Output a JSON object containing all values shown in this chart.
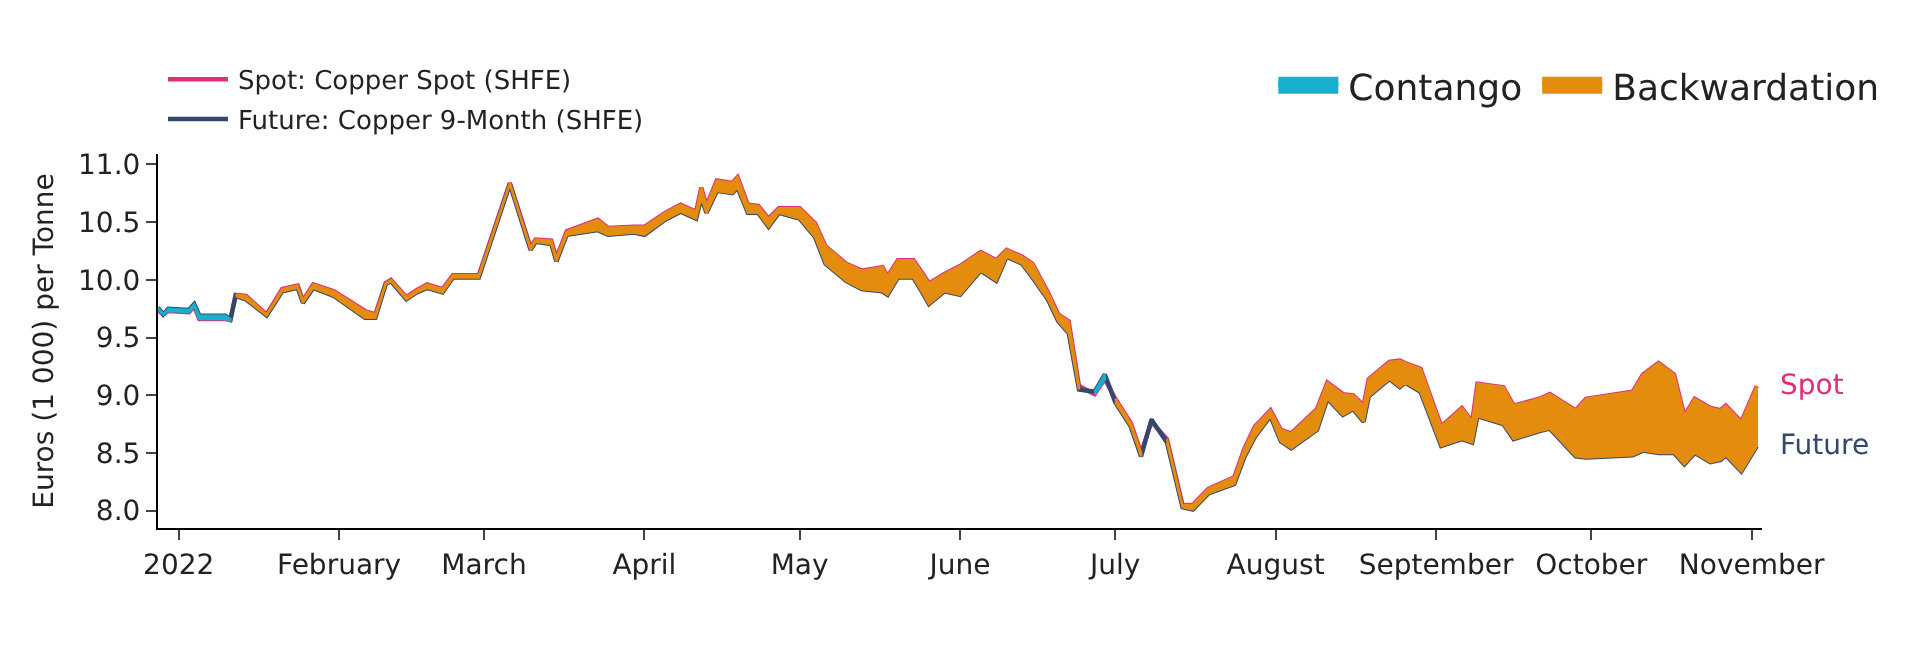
{
  "chart_data": {
    "type": "line",
    "ylabel": "Euros (1 000) per Tonne",
    "x": [
      "2021-12-28",
      "2021-12-29",
      "2021-12-30",
      "2022-01-03",
      "2022-01-04",
      "2022-01-05",
      "2022-01-10",
      "2022-01-11",
      "2022-01-12",
      "2022-01-14",
      "2022-01-18",
      "2022-01-21",
      "2022-01-24",
      "2022-01-25",
      "2022-01-27",
      "2022-01-31",
      "2022-02-06",
      "2022-02-08",
      "2022-02-10",
      "2022-02-11",
      "2022-02-14",
      "2022-02-16",
      "2022-02-18",
      "2022-02-21",
      "2022-02-23",
      "2022-02-28",
      "2022-03-06",
      "2022-03-10",
      "2022-03-11",
      "2022-03-14",
      "2022-03-15",
      "2022-03-17",
      "2022-03-23",
      "2022-03-25",
      "2022-03-30",
      "2022-04-01",
      "2022-04-05",
      "2022-04-08",
      "2022-04-11",
      "2022-04-12",
      "2022-04-13",
      "2022-04-15",
      "2022-04-18",
      "2022-04-19",
      "2022-04-21",
      "2022-04-23",
      "2022-04-25",
      "2022-04-27",
      "2022-05-01",
      "2022-05-04",
      "2022-05-06",
      "2022-05-10",
      "2022-05-13",
      "2022-05-17",
      "2022-05-18",
      "2022-05-20",
      "2022-05-23",
      "2022-05-25",
      "2022-05-26",
      "2022-05-29",
      "2022-06-01",
      "2022-06-05",
      "2022-06-08",
      "2022-06-10",
      "2022-06-13",
      "2022-06-15",
      "2022-06-18",
      "2022-06-20",
      "2022-06-22",
      "2022-06-24",
      "2022-06-27",
      "2022-06-29",
      "2022-07-01",
      "2022-07-04",
      "2022-07-06",
      "2022-07-08",
      "2022-07-11",
      "2022-07-14",
      "2022-07-16",
      "2022-07-19",
      "2022-07-24",
      "2022-07-26",
      "2022-07-28",
      "2022-07-31",
      "2022-08-02",
      "2022-08-04",
      "2022-08-09",
      "2022-08-11",
      "2022-08-14",
      "2022-08-16",
      "2022-08-18",
      "2022-08-19",
      "2022-08-23",
      "2022-08-25",
      "2022-08-26",
      "2022-08-29",
      "2022-09-02",
      "2022-09-06",
      "2022-09-08",
      "2022-09-09",
      "2022-09-14",
      "2022-09-16",
      "2022-09-21",
      "2022-09-23",
      "2022-09-28",
      "2022-09-30",
      "2022-10-09",
      "2022-10-11",
      "2022-10-14",
      "2022-10-17",
      "2022-10-19",
      "2022-10-21",
      "2022-10-24",
      "2022-10-26",
      "2022-10-27",
      "2022-10-30",
      "2022-11-02"
    ],
    "series": [
      {
        "name": "Spot: Copper Spot (SHFE)",
        "color": "#dd2e7a",
        "values": [
          9.74,
          9.7,
          9.73,
          9.72,
          9.77,
          9.66,
          9.66,
          9.65,
          9.87,
          9.86,
          9.7,
          9.92,
          9.95,
          9.82,
          9.96,
          9.9,
          9.73,
          9.7,
          9.97,
          10.0,
          9.85,
          9.91,
          9.96,
          9.92,
          10.04,
          10.04,
          10.84,
          10.28,
          10.35,
          10.34,
          10.19,
          10.42,
          10.52,
          10.45,
          10.46,
          10.46,
          10.58,
          10.65,
          10.59,
          10.8,
          10.64,
          10.86,
          10.84,
          10.89,
          10.65,
          10.64,
          10.53,
          10.62,
          10.62,
          10.49,
          10.29,
          10.14,
          10.08,
          10.11,
          10.03,
          10.17,
          10.17,
          10.04,
          9.97,
          10.05,
          10.12,
          10.24,
          10.17,
          10.26,
          10.2,
          10.14,
          9.89,
          9.7,
          9.64,
          9.08,
          9.01,
          9.14,
          8.97,
          8.76,
          8.5,
          8.77,
          8.62,
          8.05,
          8.05,
          8.19,
          8.29,
          8.54,
          8.73,
          8.87,
          8.7,
          8.67,
          8.88,
          9.11,
          9.01,
          9.0,
          8.91,
          9.14,
          9.29,
          9.3,
          9.28,
          9.23,
          8.73,
          8.89,
          8.77,
          9.1,
          9.07,
          8.91,
          8.97,
          9.01,
          8.87,
          8.97,
          9.03,
          9.18,
          9.28,
          9.18,
          8.82,
          8.97,
          8.89,
          8.87,
          8.91,
          8.77,
          9.08
        ]
      },
      {
        "name": "Future: Copper 9-Month (SHFE)",
        "color": "#34486b",
        "values": [
          9.76,
          9.7,
          9.75,
          9.74,
          9.79,
          9.69,
          9.69,
          9.66,
          9.86,
          9.83,
          9.69,
          9.9,
          9.93,
          9.8,
          9.93,
          9.86,
          9.67,
          9.67,
          9.96,
          9.99,
          9.83,
          9.89,
          9.93,
          9.89,
          10.02,
          10.02,
          10.83,
          10.26,
          10.33,
          10.31,
          10.16,
          10.39,
          10.43,
          10.39,
          10.41,
          10.39,
          10.52,
          10.59,
          10.53,
          10.71,
          10.58,
          10.77,
          10.75,
          10.8,
          10.58,
          10.58,
          10.46,
          10.58,
          10.53,
          10.37,
          10.14,
          9.99,
          9.92,
          9.9,
          9.87,
          10.02,
          10.02,
          9.87,
          9.79,
          9.9,
          9.87,
          10.08,
          9.99,
          10.2,
          10.14,
          10.02,
          9.83,
          9.64,
          9.54,
          9.05,
          9.03,
          9.18,
          8.94,
          8.73,
          8.47,
          8.79,
          8.59,
          8.03,
          8.01,
          8.15,
          8.23,
          8.47,
          8.64,
          8.82,
          8.6,
          8.54,
          8.7,
          8.97,
          8.83,
          8.88,
          8.77,
          8.99,
          9.14,
          9.07,
          9.11,
          9.03,
          8.56,
          8.62,
          8.59,
          8.82,
          8.75,
          8.62,
          8.69,
          8.71,
          8.47,
          8.46,
          8.48,
          8.52,
          8.5,
          8.5,
          8.4,
          8.5,
          8.42,
          8.44,
          8.48,
          8.34,
          8.56
        ]
      },
      {
        "name": "Contango",
        "type": "area",
        "color": "#17b0cf",
        "values": [
          9.76,
          9.7,
          9.75,
          9.74,
          9.79,
          9.69,
          9.69,
          9.66,
          null,
          null,
          null,
          null,
          null,
          null,
          null,
          null,
          null,
          null,
          null,
          null,
          null,
          null,
          null,
          null,
          null,
          null,
          null,
          null,
          null,
          null,
          null,
          null,
          null,
          null,
          null,
          null,
          null,
          null,
          null,
          null,
          null,
          null,
          null,
          null,
          null,
          null,
          null,
          null,
          null,
          null,
          null,
          null,
          null,
          null,
          null,
          null,
          null,
          null,
          null,
          null,
          null,
          null,
          null,
          null,
          null,
          null,
          null,
          null,
          null,
          null,
          9.03,
          9.18,
          null,
          null,
          null,
          null,
          null,
          null,
          null,
          null,
          null,
          null,
          null,
          null,
          null,
          null,
          null,
          null,
          null,
          null,
          null,
          null,
          null,
          null,
          null,
          null,
          null,
          null,
          null,
          null,
          null,
          null,
          null,
          null,
          null,
          null,
          null,
          null,
          null,
          null,
          null,
          null,
          null,
          null,
          null,
          null,
          null
        ]
      },
      {
        "name": "Backwardation",
        "type": "area",
        "color": "#e48c0e",
        "values": [
          null,
          null,
          null,
          null,
          null,
          null,
          null,
          null,
          9.87,
          9.86,
          9.7,
          9.92,
          9.95,
          9.82,
          9.96,
          9.9,
          9.73,
          9.7,
          9.97,
          10.0,
          9.85,
          9.91,
          9.96,
          9.92,
          10.04,
          10.04,
          10.84,
          10.28,
          10.35,
          10.34,
          10.19,
          10.42,
          10.52,
          10.45,
          10.46,
          10.46,
          10.58,
          10.65,
          10.59,
          10.8,
          10.64,
          10.86,
          10.84,
          10.89,
          10.65,
          10.64,
          10.53,
          10.62,
          10.62,
          10.49,
          10.29,
          10.14,
          10.08,
          10.11,
          10.03,
          10.17,
          10.17,
          10.04,
          9.97,
          10.05,
          10.12,
          10.24,
          10.17,
          10.26,
          10.2,
          10.14,
          9.89,
          9.7,
          9.64,
          9.08,
          null,
          null,
          8.97,
          8.76,
          8.5,
          null,
          8.62,
          8.05,
          8.05,
          8.19,
          8.29,
          8.54,
          8.73,
          8.87,
          8.7,
          8.67,
          8.88,
          9.11,
          9.01,
          9.0,
          8.91,
          9.14,
          9.29,
          9.3,
          9.28,
          9.23,
          8.73,
          8.89,
          8.77,
          9.1,
          9.07,
          8.91,
          8.97,
          9.01,
          8.87,
          8.97,
          9.03,
          9.18,
          9.28,
          9.18,
          8.82,
          8.97,
          8.89,
          8.87,
          8.91,
          8.77,
          9.08
        ]
      }
    ],
    "annotations": [
      {
        "text": "Spot",
        "x": "2022-11-02",
        "y": 9.08
      },
      {
        "text": "Future",
        "x": "2022-11-02",
        "y": 8.56
      }
    ],
    "xlim": [
      "2021-12-28",
      "2022-11-03"
    ],
    "xticks": [
      {
        "value": "2022-01-01",
        "label": "2022"
      },
      {
        "value": "2022-02-01",
        "label": "February"
      },
      {
        "value": "2022-03-01",
        "label": "March"
      },
      {
        "value": "2022-04-01",
        "label": "April"
      },
      {
        "value": "2022-05-01",
        "label": "May"
      },
      {
        "value": "2022-06-01",
        "label": "June"
      },
      {
        "value": "2022-07-01",
        "label": "July"
      },
      {
        "value": "2022-08-01",
        "label": "August"
      },
      {
        "value": "2022-09-01",
        "label": "September"
      },
      {
        "value": "2022-10-01",
        "label": "October"
      },
      {
        "value": "2022-11-01",
        "label": "November"
      }
    ],
    "ylim": [
      7.85,
      11.09
    ],
    "yticks": [
      {
        "value": 8,
        "label": "8.0"
      },
      {
        "value": 8.5,
        "label": "8.5"
      },
      {
        "value": 9,
        "label": "9.0"
      },
      {
        "value": 9.5,
        "label": "9.5"
      },
      {
        "value": 10,
        "label": "10.0"
      },
      {
        "value": 10.5,
        "label": "10.5"
      },
      {
        "value": 11,
        "label": "11.0"
      }
    ],
    "legend": "top left",
    "line_style": "solid",
    "marker": "none"
  }
}
